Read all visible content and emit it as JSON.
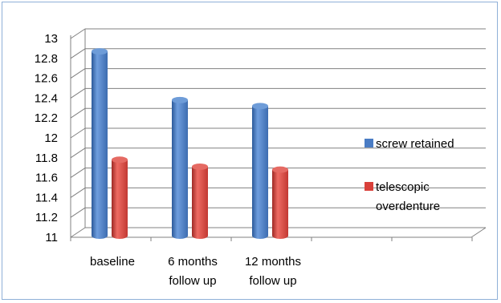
{
  "chart_data": {
    "type": "bar",
    "style": "3d-cylinder",
    "categories": [
      [
        "baseline"
      ],
      [
        "6 months",
        "follow up"
      ],
      [
        "12 months",
        "follow up"
      ]
    ],
    "series": [
      {
        "name": "screw retained",
        "values": [
          12.87,
          12.38,
          12.32
        ],
        "color": "#4a7cc4"
      },
      {
        "name": "telescopic overdenture",
        "name_lines": [
          "telescopic",
          "overdenture"
        ],
        "values": [
          11.78,
          11.71,
          11.68
        ],
        "color": "#d9403a"
      }
    ],
    "ylim": [
      11,
      13
    ],
    "yticks": [
      "13",
      "12.8",
      "12.6",
      "12.4",
      "12.2",
      "12",
      "11.8",
      "11.6",
      "11.4",
      "11.2",
      "11"
    ],
    "grid": true,
    "legend_position": "right",
    "title": "",
    "xlabel": "",
    "ylabel": ""
  }
}
